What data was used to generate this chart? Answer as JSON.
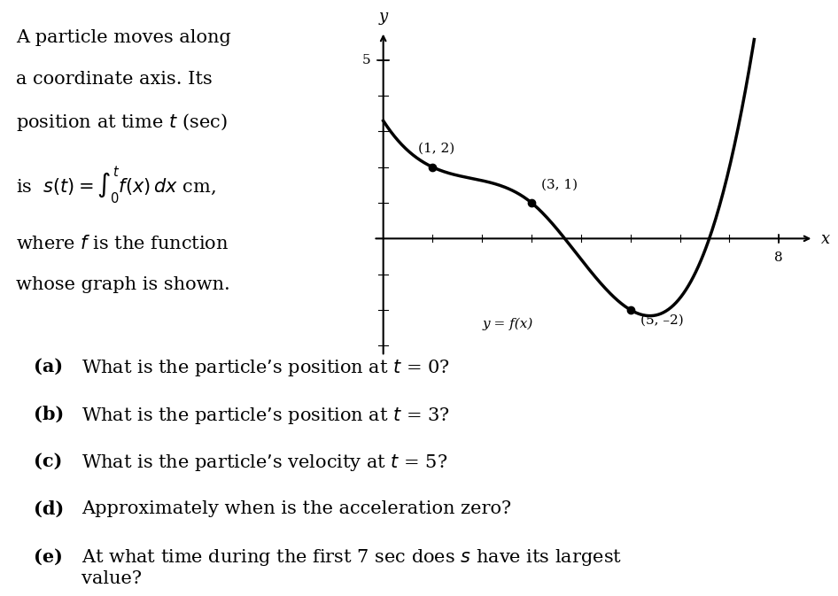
{
  "bg_color": "#ffffff",
  "graph_points": [
    [
      1,
      2
    ],
    [
      3,
      1
    ],
    [
      5,
      -2
    ],
    [
      7,
      2
    ]
  ],
  "labeled_points": [
    [
      1,
      2
    ],
    [
      3,
      1
    ],
    [
      5,
      -2
    ]
  ],
  "point_labels": [
    "(1, 2)",
    "(3, 1)",
    "(5, –2)"
  ],
  "xlim": [
    -0.3,
    9.0
  ],
  "ylim": [
    -3.5,
    6.0
  ],
  "xtick_label": "8",
  "ytick_label": "5",
  "x_label": "x",
  "y_label": "y",
  "curve_label": "y = f(x)",
  "curve_color": "#000000",
  "text_color": "#000000",
  "intro_lines": [
    "A particle moves along",
    "a coordinate axis. Its",
    "position at time $t$ (sec)"
  ],
  "formula_line": "is  $s(t) = \\int_0^t f(x)\\,dx$ cm,",
  "desc_lines": [
    "where $f$ is the function",
    "whose graph is shown."
  ],
  "questions": [
    [
      "(a)",
      "What is the particle’s position at $t$ = 0?"
    ],
    [
      "(b)",
      "What is the particle’s position at $t$ = 3?"
    ],
    [
      "(c)",
      "What is the particle’s velocity at $t$ = 5?"
    ],
    [
      "(d)",
      "Approximately when is the acceleration zero?"
    ],
    [
      "(e)",
      "At what time during the first 7 sec does $s$ have its largest\nvalue?"
    ]
  ]
}
